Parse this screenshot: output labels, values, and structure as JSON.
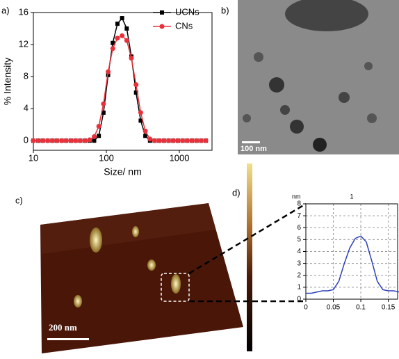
{
  "chart_data": [
    {
      "type": "line",
      "label": "a)",
      "xlabel": "Size/ nm",
      "ylabel": "% Intensity",
      "xscale": "log",
      "xlim": [
        10,
        2800
      ],
      "xticks": [
        10,
        100,
        1000
      ],
      "ylim": [
        -1.2,
        16
      ],
      "yticks": [
        0,
        4,
        8,
        12,
        16
      ],
      "legend": "upper right",
      "x": [
        10,
        11.7,
        13.5,
        15.7,
        18.2,
        21,
        24.4,
        28.2,
        32.7,
        37.8,
        43.8,
        50.7,
        58.8,
        68.1,
        78.8,
        91.3,
        105.7,
        122.4,
        141.8,
        164.2,
        190.1,
        220.2,
        255,
        295.3,
        342,
        396,
        458.7,
        531.2,
        615.1,
        712.4,
        825,
        955.4,
        1106,
        1281,
        1484,
        1718,
        1990,
        2305
      ],
      "series": [
        {
          "name": "UCNs",
          "color": "#000000",
          "marker": "square",
          "values": [
            0,
            0,
            0,
            0,
            0,
            0,
            0,
            0,
            0,
            0,
            0,
            0,
            0,
            0,
            0.6,
            3.5,
            8.2,
            12.2,
            14.6,
            15.3,
            14,
            10.5,
            6,
            2.5,
            0.6,
            0,
            0,
            0,
            0,
            0,
            0,
            0,
            0,
            0,
            0,
            0,
            0,
            0
          ]
        },
        {
          "name": "CNs",
          "color": "#e8313a",
          "marker": "circle",
          "values": [
            0,
            0,
            0,
            0,
            0,
            0,
            0,
            0,
            0,
            0,
            0,
            0,
            0.1,
            0.5,
            1.8,
            4.6,
            8.6,
            11.5,
            12.8,
            13.1,
            12.5,
            10.3,
            7,
            3.5,
            1.2,
            0.2,
            0,
            0,
            0,
            0,
            0,
            0,
            0,
            0,
            0,
            0,
            0,
            0
          ]
        }
      ]
    },
    {
      "type": "line",
      "label": "d)",
      "ylabel": "nm",
      "title": "1",
      "xlim": [
        0,
        0.167
      ],
      "xticks": [
        0,
        0.05,
        0.1,
        0.15
      ],
      "ylim": [
        0,
        8
      ],
      "yticks": [
        0,
        1,
        2,
        3,
        4,
        5,
        6,
        7,
        8
      ],
      "grid": true,
      "x": [
        0,
        0.01,
        0.02,
        0.03,
        0.04,
        0.05,
        0.06,
        0.07,
        0.08,
        0.09,
        0.1,
        0.11,
        0.12,
        0.13,
        0.14,
        0.15,
        0.16,
        0.17
      ],
      "series": [
        {
          "color": "#2b3fb8",
          "marker": "none",
          "values": [
            0.5,
            0.5,
            0.6,
            0.7,
            0.7,
            0.8,
            1.5,
            3,
            4.3,
            5.1,
            5.3,
            4.8,
            3.2,
            1.5,
            0.8,
            0.7,
            0.7,
            0.6
          ]
        }
      ]
    }
  ],
  "images": [
    {
      "label": "b)",
      "scale_bar": "100 nm"
    },
    {
      "label": "c)",
      "scale_bar": "200 nm"
    }
  ]
}
